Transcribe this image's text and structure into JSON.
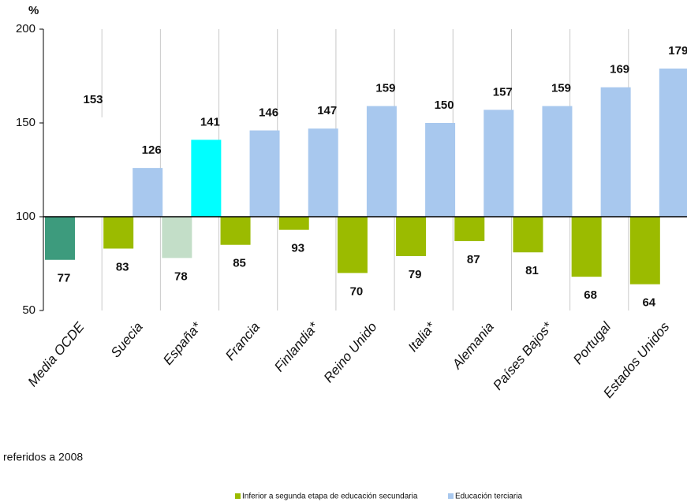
{
  "chart_data": {
    "type": "bar",
    "y_label": "%",
    "note": "referidos a 2008",
    "categories": [
      "Media OCDE",
      "Suecia",
      "España*",
      "Francia",
      "Finlandia*",
      "Reino Unido",
      "Italia*",
      "Alemania",
      "Países Bajos*",
      "Portugal",
      "Estados Unidos"
    ],
    "baseline": 100,
    "series": [
      {
        "name": "Inferior a segunda etapa de educación secundaria",
        "color": "#9bbb00",
        "colors": [
          "#3d9b7d",
          "#9bbb00",
          "#c3dec8",
          "#9bbb00",
          "#9bbb00",
          "#9bbb00",
          "#9bbb00",
          "#9bbb00",
          "#9bbb00",
          "#9bbb00",
          "#9bbb00"
        ],
        "values": [
          77,
          83,
          78,
          85,
          93,
          70,
          79,
          87,
          81,
          68,
          64
        ]
      },
      {
        "name": "Educación terciaria",
        "color": "#a8c8ee",
        "colors": [
          "#ffffff",
          "#a8c8ee",
          "#00ffff",
          "#a8c8ee",
          "#a8c8ee",
          "#a8c8ee",
          "#a8c8ee",
          "#a8c8ee",
          "#a8c8ee",
          "#a8c8ee",
          "#a8c8ee"
        ],
        "values": [
          153,
          126,
          141,
          146,
          147,
          159,
          150,
          157,
          159,
          169,
          179
        ]
      }
    ],
    "ylim": [
      50,
      200
    ],
    "yticks": [
      50,
      100,
      150,
      200
    ]
  }
}
